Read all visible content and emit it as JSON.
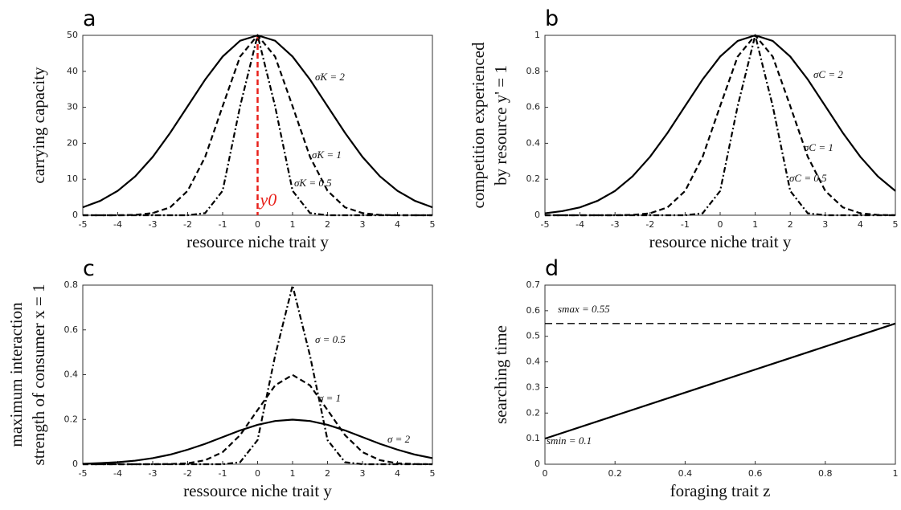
{
  "chart_data": [
    {
      "type": "line",
      "title": "a",
      "xlabel": "resource niche trait y",
      "ylabel": [
        "carrying capacity"
      ],
      "x": [
        -5,
        -4.5,
        -4,
        -3.5,
        -3,
        -2.5,
        -2,
        -1.5,
        -1,
        -0.5,
        0,
        0.5,
        1,
        1.5,
        2,
        2.5,
        3,
        3.5,
        4,
        4.5,
        5
      ],
      "xlim": [
        -5,
        5
      ],
      "xticks": [
        -5,
        -4,
        -3,
        -2,
        -1,
        0,
        1,
        2,
        3,
        4,
        5
      ],
      "ylim": [
        0,
        50
      ],
      "yticks": [
        0,
        10,
        20,
        30,
        40,
        50
      ],
      "series": [
        {
          "name": "σK = 2",
          "color": "#000000",
          "style": "solid",
          "values": [
            2.2,
            4.0,
            6.8,
            10.8,
            16.2,
            22.9,
            30.3,
            37.7,
            44.1,
            48.5,
            50,
            48.5,
            44.1,
            37.7,
            30.3,
            22.9,
            16.2,
            10.8,
            6.8,
            4.0,
            2.2
          ]
        },
        {
          "name": "σK = 1",
          "color": "#000000",
          "style": "dashed",
          "values": [
            0,
            0,
            0,
            0.1,
            0.6,
            2.2,
            6.8,
            16.2,
            30.3,
            44.1,
            50,
            44.1,
            30.3,
            16.2,
            6.8,
            2.2,
            0.6,
            0.1,
            0,
            0,
            0
          ]
        },
        {
          "name": "σK = 0.5",
          "color": "#000000",
          "style": "dashdot",
          "values": [
            0,
            0,
            0,
            0,
            0,
            0,
            0,
            0.6,
            6.8,
            30.3,
            50,
            30.3,
            6.8,
            0.6,
            0,
            0,
            0,
            0,
            0,
            0,
            0
          ]
        }
      ],
      "vline": {
        "x": 0,
        "label": "y0",
        "color": "#e8211b"
      }
    },
    {
      "type": "line",
      "title": "b",
      "xlabel": "resource niche trait y",
      "ylabel": [
        "competition experienced",
        "by resource y' = 1"
      ],
      "x": [
        -5,
        -4.5,
        -4,
        -3.5,
        -3,
        -2.5,
        -2,
        -1.5,
        -1,
        -0.5,
        0,
        0.5,
        1,
        1.5,
        2,
        2.5,
        3,
        3.5,
        4,
        4.5,
        5
      ],
      "xlim": [
        -5,
        5
      ],
      "xticks": [
        -5,
        -4,
        -3,
        -2,
        -1,
        0,
        1,
        2,
        3,
        4,
        5
      ],
      "ylim": [
        0,
        1
      ],
      "yticks": [
        0,
        0.2,
        0.4,
        0.6,
        0.8,
        1
      ],
      "series": [
        {
          "name": "σC = 2",
          "color": "#000000",
          "style": "solid",
          "values": [
            0.011,
            0.023,
            0.044,
            0.08,
            0.135,
            0.216,
            0.325,
            0.458,
            0.607,
            0.755,
            0.882,
            0.969,
            1,
            0.969,
            0.882,
            0.755,
            0.607,
            0.458,
            0.325,
            0.216,
            0.135
          ]
        },
        {
          "name": "σC = 1",
          "color": "#000000",
          "style": "dashed",
          "values": [
            0,
            0,
            0,
            0,
            0,
            0.002,
            0.011,
            0.044,
            0.135,
            0.325,
            0.607,
            0.882,
            1,
            0.882,
            0.607,
            0.325,
            0.135,
            0.044,
            0.011,
            0.002,
            0
          ]
        },
        {
          "name": "σC = 0.5",
          "color": "#000000",
          "style": "dashdot",
          "values": [
            0,
            0,
            0,
            0,
            0,
            0,
            0,
            0,
            0,
            0.011,
            0.135,
            0.607,
            1,
            0.607,
            0.135,
            0.011,
            0,
            0,
            0,
            0,
            0
          ]
        }
      ]
    },
    {
      "type": "line",
      "title": "c",
      "xlabel": "ressource niche trait y",
      "ylabel": [
        "maximum interaction",
        "strength of consumer x = 1"
      ],
      "x": [
        -5,
        -4.5,
        -4,
        -3.5,
        -3,
        -2.5,
        -2,
        -1.5,
        -1,
        -0.5,
        0,
        0.5,
        1,
        1.5,
        2,
        2.5,
        3,
        3.5,
        4,
        4.5,
        5
      ],
      "xlim": [
        -5,
        5
      ],
      "xticks": [
        -5,
        -4,
        -3,
        -2,
        -1,
        0,
        1,
        2,
        3,
        4,
        5
      ],
      "ylim": [
        0,
        0.8
      ],
      "yticks": [
        0,
        0.2,
        0.4,
        0.6,
        0.8
      ],
      "series": [
        {
          "name": "σ = 0.5",
          "color": "#000000",
          "style": "dashdot",
          "values": [
            0,
            0,
            0,
            0,
            0,
            0,
            0,
            0,
            0,
            0.009,
            0.108,
            0.484,
            0.798,
            0.484,
            0.108,
            0.009,
            0,
            0,
            0,
            0,
            0
          ]
        },
        {
          "name": "σ = 1",
          "color": "#000000",
          "style": "dashed",
          "values": [
            0,
            0,
            0,
            0,
            0,
            0.001,
            0.004,
            0.018,
            0.054,
            0.13,
            0.242,
            0.352,
            0.399,
            0.352,
            0.242,
            0.13,
            0.054,
            0.018,
            0.004,
            0.001,
            0
          ]
        },
        {
          "name": "σ = 2",
          "color": "#000000",
          "style": "solid",
          "values": [
            0.002,
            0.005,
            0.009,
            0.016,
            0.027,
            0.043,
            0.065,
            0.091,
            0.121,
            0.151,
            0.176,
            0.193,
            0.199,
            0.193,
            0.176,
            0.151,
            0.121,
            0.091,
            0.065,
            0.043,
            0.027
          ]
        }
      ]
    },
    {
      "type": "line",
      "title": "d",
      "xlabel": "foraging trait z",
      "ylabel": [
        "searching time"
      ],
      "x": [
        0,
        1
      ],
      "xlim": [
        0,
        1
      ],
      "xticks": [
        0,
        0.2,
        0.4,
        0.6,
        0.8,
        1
      ],
      "ylim": [
        0,
        0.7
      ],
      "yticks": [
        0,
        0.1,
        0.2,
        0.3,
        0.4,
        0.5,
        0.6,
        0.7
      ],
      "series": [
        {
          "name": "smax = 0.55",
          "color": "#000000",
          "style": "longdash",
          "values": [
            0.55,
            0.55
          ]
        },
        {
          "name": "smin = 0.1",
          "color": "#000000",
          "style": "solid",
          "values": [
            0.1,
            0.55
          ]
        }
      ]
    }
  ]
}
